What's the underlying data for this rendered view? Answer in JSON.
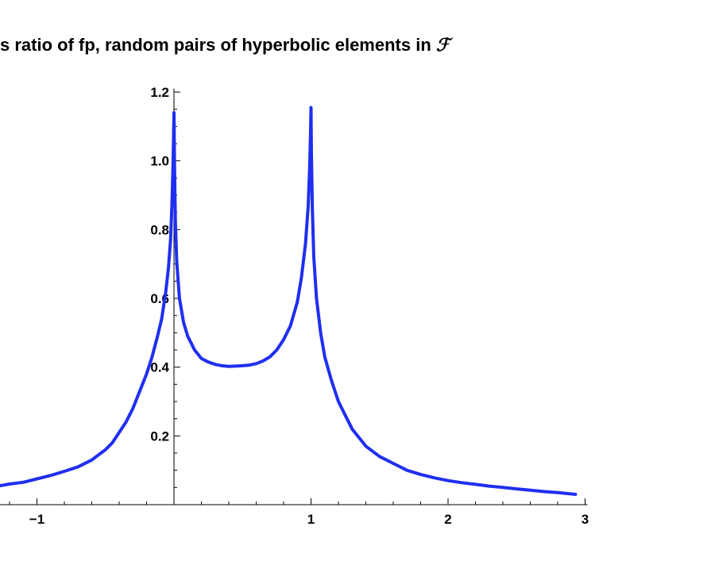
{
  "chart_data": {
    "type": "line",
    "title_prefix": "s ratio of fp, random pairs of hyperbolic elements in",
    "title_symbol": "ℱ",
    "xlabel": "",
    "ylabel": "",
    "xlim": [
      -1.27,
      3.0
    ],
    "ylim": [
      0,
      1.21
    ],
    "grid": false,
    "x_ticks": [
      -1,
      1,
      2,
      3
    ],
    "x_tick_labels": [
      "−1",
      "1",
      "2",
      "3"
    ],
    "y_ticks": [
      0.2,
      0.4,
      0.6,
      0.8,
      1.0,
      1.2
    ],
    "y_tick_labels": [
      "0.2",
      "0.4",
      "0.6",
      "0.8",
      "1.0",
      "1.2"
    ],
    "line_color": "#1f2ff0",
    "series": [
      {
        "x": [
          -1.27,
          -1.2,
          -1.1,
          -1.0,
          -0.9,
          -0.8,
          -0.7,
          -0.6,
          -0.5,
          -0.45,
          -0.4,
          -0.35,
          -0.3,
          -0.25,
          -0.2,
          -0.16,
          -0.12,
          -0.09,
          -0.06,
          -0.04,
          -0.025,
          -0.015,
          -0.008,
          -0.003,
          0.0,
          0.004,
          0.01,
          0.02,
          0.04,
          0.07,
          0.1,
          0.15,
          0.2,
          0.25,
          0.3,
          0.35,
          0.4,
          0.45,
          0.5,
          0.55,
          0.6,
          0.65,
          0.7,
          0.75,
          0.8,
          0.85,
          0.9,
          0.93,
          0.96,
          0.98,
          0.99,
          0.997,
          1.0,
          1.003,
          1.01,
          1.02,
          1.04,
          1.07,
          1.1,
          1.15,
          1.2,
          1.25,
          1.3,
          1.4,
          1.5,
          1.6,
          1.7,
          1.8,
          1.9,
          2.0,
          2.1,
          2.2,
          2.3,
          2.4,
          2.5,
          2.6,
          2.7,
          2.8,
          2.93
        ],
        "y": [
          0.055,
          0.06,
          0.065,
          0.075,
          0.085,
          0.097,
          0.11,
          0.13,
          0.16,
          0.18,
          0.21,
          0.24,
          0.28,
          0.33,
          0.38,
          0.43,
          0.49,
          0.54,
          0.62,
          0.69,
          0.77,
          0.87,
          0.97,
          1.07,
          1.14,
          0.98,
          0.83,
          0.71,
          0.6,
          0.53,
          0.49,
          0.45,
          0.425,
          0.415,
          0.408,
          0.404,
          0.402,
          0.403,
          0.404,
          0.406,
          0.41,
          0.418,
          0.43,
          0.45,
          0.48,
          0.52,
          0.59,
          0.66,
          0.76,
          0.87,
          0.98,
          1.09,
          1.155,
          1.02,
          0.86,
          0.72,
          0.6,
          0.5,
          0.43,
          0.36,
          0.3,
          0.26,
          0.22,
          0.17,
          0.14,
          0.12,
          0.1,
          0.088,
          0.078,
          0.07,
          0.064,
          0.059,
          0.054,
          0.05,
          0.046,
          0.042,
          0.038,
          0.035,
          0.03
        ]
      }
    ]
  }
}
